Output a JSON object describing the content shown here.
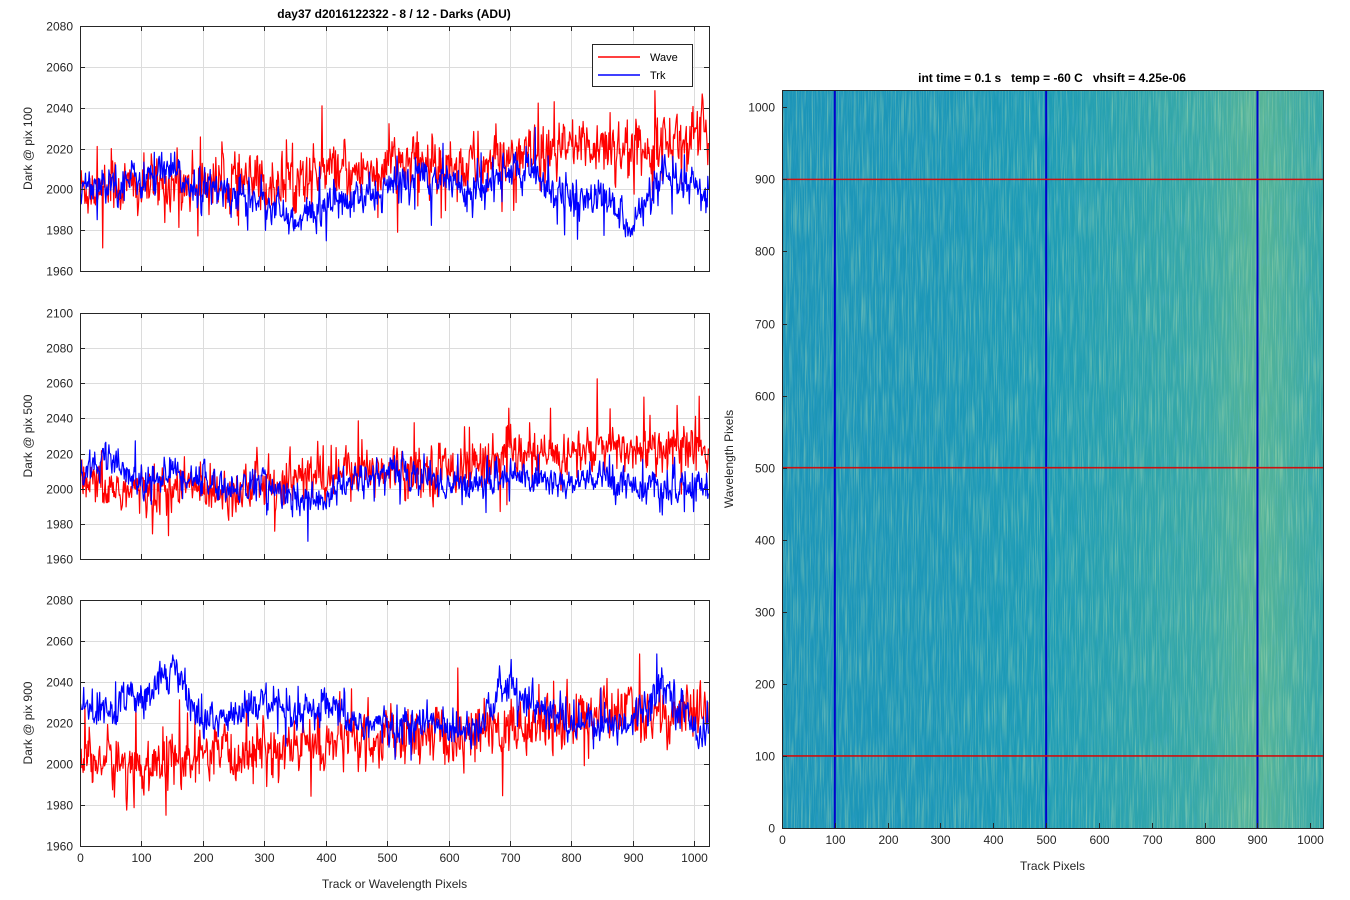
{
  "colors": {
    "wave": "#ff0000",
    "trk": "#0000ff",
    "hline": "#cc1010",
    "vline": "#0000cc",
    "grid": "#dcdcdc",
    "axis": "#262626",
    "image_base": "#1d9fb4",
    "image_low": "#1a7fc0",
    "image_high": "#8ec87a"
  },
  "chart_data": [
    {
      "type": "line",
      "title": "day37 d2016122322 - 8 / 12 - Darks (ADU)",
      "xlabel": "",
      "ylabel": "Dark @ pix 100",
      "xlim": [
        0,
        1024
      ],
      "ylim": [
        1960,
        2080
      ],
      "xticks": [
        0,
        100,
        200,
        300,
        400,
        500,
        600,
        700,
        800,
        900,
        1000
      ],
      "yticks": [
        1960,
        1980,
        2000,
        2020,
        2040,
        2060,
        2080
      ],
      "show_xtick_labels": false,
      "grid": true,
      "legend": {
        "position": "top-right",
        "entries": [
          "Wave",
          "Trk"
        ]
      },
      "series": [
        {
          "name": "Wave",
          "color": "#ff0000",
          "x": [
            0,
            50,
            100,
            150,
            200,
            250,
            300,
            350,
            400,
            450,
            500,
            550,
            600,
            650,
            700,
            750,
            800,
            850,
            900,
            950,
            1000,
            1024
          ],
          "y": [
            2000,
            2002,
            2000,
            2003,
            2004,
            2003,
            2002,
            2005,
            2008,
            2008,
            2012,
            2013,
            2012,
            2012,
            2015,
            2015,
            2020,
            2023,
            2020,
            2024,
            2026,
            2026
          ]
        },
        {
          "name": "Trk",
          "color": "#0000ff",
          "x": [
            0,
            50,
            100,
            150,
            200,
            250,
            300,
            350,
            400,
            450,
            500,
            550,
            600,
            650,
            700,
            750,
            800,
            850,
            900,
            950,
            1000,
            1024
          ],
          "y": [
            2003,
            2004,
            2005,
            2008,
            2000,
            1998,
            1996,
            1982,
            1993,
            1994,
            2000,
            2008,
            2005,
            1998,
            2010,
            2005,
            1994,
            1996,
            1983,
            2005,
            2000,
            1996
          ]
        }
      ]
    },
    {
      "type": "line",
      "title": "",
      "xlabel": "",
      "ylabel": "Dark @ pix 500",
      "xlim": [
        0,
        1024
      ],
      "ylim": [
        1960,
        2100
      ],
      "xticks": [
        0,
        100,
        200,
        300,
        400,
        500,
        600,
        700,
        800,
        900,
        1000
      ],
      "yticks": [
        1960,
        1980,
        2000,
        2020,
        2040,
        2060,
        2080,
        2100
      ],
      "show_xtick_labels": false,
      "grid": true,
      "series": [
        {
          "name": "Wave",
          "color": "#ff0000",
          "x": [
            0,
            50,
            100,
            150,
            200,
            250,
            300,
            350,
            400,
            450,
            500,
            550,
            600,
            650,
            700,
            750,
            800,
            850,
            900,
            950,
            1000,
            1024
          ],
          "y": [
            2001,
            2000,
            1998,
            2000,
            2001,
            2000,
            2002,
            2006,
            2007,
            2010,
            2012,
            2011,
            2012,
            2015,
            2018,
            2018,
            2020,
            2022,
            2022,
            2024,
            2024,
            2023
          ]
        },
        {
          "name": "Trk",
          "color": "#0000ff",
          "x": [
            0,
            50,
            100,
            150,
            200,
            250,
            300,
            350,
            400,
            450,
            500,
            550,
            600,
            650,
            700,
            750,
            800,
            850,
            900,
            950,
            1000,
            1024
          ],
          "y": [
            2010,
            2015,
            2002,
            2010,
            2005,
            2000,
            2004,
            1992,
            1995,
            2005,
            2010,
            2008,
            2002,
            2003,
            2008,
            2005,
            2002,
            2006,
            2003,
            1998,
            2000,
            2003
          ]
        }
      ]
    },
    {
      "type": "line",
      "title": "",
      "xlabel": "Track or Wavelength Pixels",
      "ylabel": "Dark @ pix 900",
      "xlim": [
        0,
        1024
      ],
      "ylim": [
        1960,
        2080
      ],
      "xticks": [
        0,
        100,
        200,
        300,
        400,
        500,
        600,
        700,
        800,
        900,
        1000
      ],
      "yticks": [
        1960,
        1980,
        2000,
        2020,
        2040,
        2060,
        2080
      ],
      "show_xtick_labels": true,
      "grid": true,
      "series": [
        {
          "name": "Wave",
          "color": "#ff0000",
          "x": [
            0,
            50,
            100,
            150,
            200,
            250,
            300,
            350,
            400,
            450,
            500,
            550,
            600,
            650,
            700,
            750,
            800,
            850,
            900,
            950,
            1000,
            1024
          ],
          "y": [
            2003,
            2001,
            1998,
            2002,
            2002,
            2004,
            2007,
            2008,
            2010,
            2012,
            2012,
            2013,
            2013,
            2015,
            2018,
            2020,
            2022,
            2025,
            2025,
            2025,
            2024,
            2023
          ]
        },
        {
          "name": "Trk",
          "color": "#0000ff",
          "x": [
            0,
            50,
            100,
            150,
            200,
            250,
            300,
            350,
            400,
            450,
            500,
            550,
            600,
            650,
            700,
            750,
            800,
            850,
            900,
            950,
            1000,
            1024
          ],
          "y": [
            2028,
            2025,
            2035,
            2048,
            2020,
            2024,
            2030,
            2022,
            2027,
            2020,
            2018,
            2020,
            2018,
            2020,
            2040,
            2026,
            2020,
            2018,
            2022,
            2040,
            2018,
            2016
          ]
        }
      ]
    },
    {
      "type": "heatmap",
      "title": "int time = 0.1 s   temp = -60 C   vhsift = 4.25e-06",
      "xlabel": "Track Pixels",
      "ylabel": "Wavelength Pixels",
      "xlim": [
        0,
        1024
      ],
      "ylim": [
        0,
        1024
      ],
      "xticks": [
        0,
        100,
        200,
        300,
        400,
        500,
        600,
        700,
        800,
        900,
        1000
      ],
      "yticks": [
        0,
        100,
        200,
        300,
        400,
        500,
        600,
        700,
        800,
        900,
        1000
      ],
      "grid": false,
      "overlay_lines": {
        "vertical_x": [
          100,
          500,
          900
        ],
        "horizontal_y": [
          100,
          500,
          900
        ]
      },
      "intensity_profile_x": [
        0,
        300,
        500,
        800,
        900,
        1024
      ],
      "intensity_profile_level": [
        0.35,
        0.38,
        0.45,
        0.62,
        0.75,
        0.6
      ]
    }
  ]
}
